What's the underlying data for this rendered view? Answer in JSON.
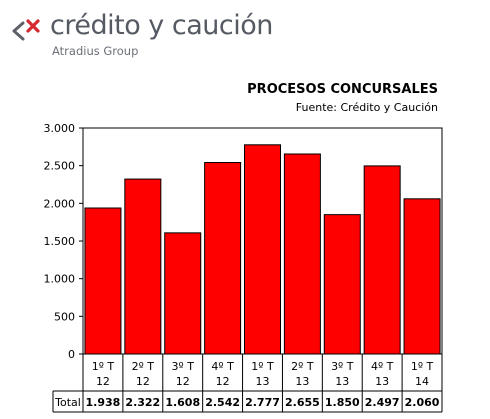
{
  "logo": {
    "name": "crédito y caución",
    "group": "Atradius Group",
    "mark_colors": {
      "gray": "#5d6168",
      "red": "#d7282f"
    }
  },
  "chart_data": {
    "type": "bar",
    "title": "PROCESOS CONCURSALES",
    "subtitle": "Fuente: Crédito y Caución",
    "categories": [
      [
        "1º T",
        "12"
      ],
      [
        "2º T",
        "12"
      ],
      [
        "3º T",
        "12"
      ],
      [
        "4º T",
        "12"
      ],
      [
        "1º T",
        "13"
      ],
      [
        "2º T",
        "13"
      ],
      [
        "3º T",
        "13"
      ],
      [
        "4º T",
        "13"
      ],
      [
        "1º T",
        "14"
      ]
    ],
    "series": [
      {
        "name": "Total",
        "values": [
          1938,
          2322,
          1608,
          2542,
          2777,
          2655,
          1850,
          2497,
          2060
        ],
        "value_labels": [
          "1.938",
          "2.322",
          "1.608",
          "2.542",
          "2.777",
          "2.655",
          "1.850",
          "2.497",
          "2.060"
        ],
        "color": "#ff0000"
      }
    ],
    "ylim": [
      0,
      3000
    ],
    "yticks": [
      0,
      500,
      1000,
      1500,
      2000,
      2500,
      3000
    ],
    "ytick_labels": [
      "0",
      "500",
      "1.000",
      "1.500",
      "2.000",
      "2.500",
      "3.000"
    ],
    "grid": false,
    "data_table": true,
    "xlabel": "",
    "ylabel": ""
  }
}
